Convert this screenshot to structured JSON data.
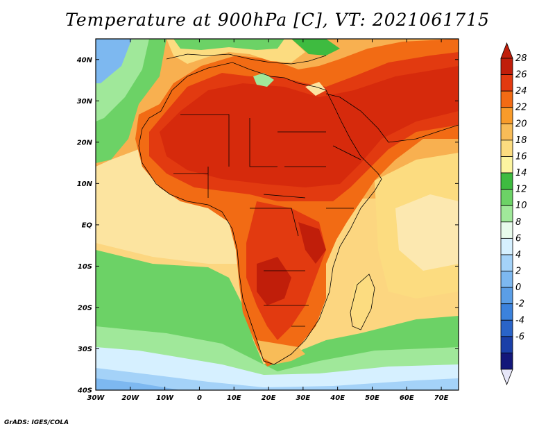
{
  "title": "Temperature at 900hPa [C], VT: 2021061715",
  "credit": "GrADS: IGES/COLA",
  "map": {
    "projection": "latlon",
    "lon_range": [
      -30,
      75
    ],
    "lat_range": [
      -40,
      45
    ],
    "lon_ticks": [
      "30W",
      "20W",
      "10W",
      "0",
      "10E",
      "20E",
      "30E",
      "40E",
      "50E",
      "60E",
      "70E"
    ],
    "lat_ticks": [
      "40S",
      "30S",
      "20S",
      "10S",
      "EQ",
      "10N",
      "20N",
      "30N",
      "40N"
    ],
    "field": "temperature",
    "level": "900hPa",
    "units": "C"
  },
  "colorbar": {
    "labels": [
      "-6",
      "-4",
      "-2",
      "0",
      "2",
      "4",
      "6",
      "8",
      "10",
      "12",
      "14",
      "16",
      "18",
      "20",
      "22",
      "24",
      "26",
      "28"
    ],
    "colors": [
      "#13177a",
      "#1a3fa8",
      "#2a64c8",
      "#3c82dc",
      "#5b9ee6",
      "#7db8f0",
      "#a4d2f8",
      "#d6f0ff",
      "#e8fbec",
      "#a0e89a",
      "#6cd266",
      "#3ebb40",
      "#fcf4a0",
      "#fcdc80",
      "#f8bc58",
      "#f89b2a",
      "#f26b14",
      "#e23a10",
      "#c01e0a"
    ],
    "under_color": "#e6e6f8",
    "over_color": "#c01e0a"
  }
}
